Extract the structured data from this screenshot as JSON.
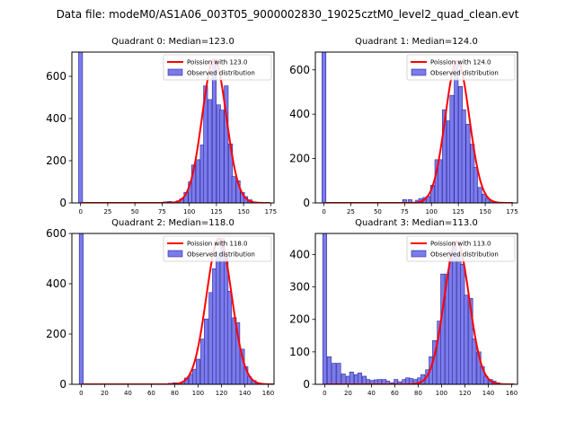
{
  "figure": {
    "suptitle": "Data file: modeM0/AS1A06_003T05_9000002830_19025cztM0_level2_quad_clean.evt"
  },
  "colors": {
    "bar_fill": "#7b7bec",
    "bar_edge": "#2a2a9a",
    "fit_line": "#ff0000",
    "axis": "#000000",
    "legend_edge": "#cccccc"
  },
  "chart_data": [
    {
      "type": "bar",
      "title": "Quadrant 0: Median=123.0",
      "median": 123.0,
      "legend": {
        "placement": "top-right",
        "fit_label": "Poission with 123.0",
        "hist_label": "Observed distribution"
      },
      "xlim": [
        -8,
        178
      ],
      "ylim": [
        0,
        715
      ],
      "xticks": [
        0,
        25,
        50,
        75,
        100,
        125,
        150,
        175
      ],
      "yticks": [
        0,
        200,
        400,
        600
      ],
      "bin_width": 3.7,
      "bins": [
        {
          "x": 0,
          "y": 715
        },
        {
          "x": 78,
          "y": 5
        },
        {
          "x": 82,
          "y": 7
        },
        {
          "x": 86,
          "y": 4
        },
        {
          "x": 90,
          "y": 10
        },
        {
          "x": 93,
          "y": 20
        },
        {
          "x": 97,
          "y": 50
        },
        {
          "x": 101,
          "y": 100
        },
        {
          "x": 104,
          "y": 180
        },
        {
          "x": 108,
          "y": 205
        },
        {
          "x": 112,
          "y": 275
        },
        {
          "x": 115,
          "y": 555
        },
        {
          "x": 119,
          "y": 490
        },
        {
          "x": 123,
          "y": 680
        },
        {
          "x": 127,
          "y": 465
        },
        {
          "x": 130,
          "y": 440
        },
        {
          "x": 134,
          "y": 555
        },
        {
          "x": 138,
          "y": 280
        },
        {
          "x": 141,
          "y": 125
        },
        {
          "x": 145,
          "y": 105
        },
        {
          "x": 149,
          "y": 50
        },
        {
          "x": 152,
          "y": 30
        },
        {
          "x": 156,
          "y": 15
        },
        {
          "x": 160,
          "y": 5
        }
      ]
    },
    {
      "type": "bar",
      "title": "Quadrant 1: Median=124.0",
      "median": 124.0,
      "legend": {
        "placement": "top-right",
        "fit_label": "Poission with 124.0",
        "hist_label": "Observed distribution"
      },
      "xlim": [
        -8,
        180
      ],
      "ylim": [
        0,
        680
      ],
      "xticks": [
        0,
        25,
        50,
        75,
        100,
        125,
        150,
        175
      ],
      "yticks": [
        0,
        200,
        400,
        600
      ],
      "bin_width": 3.7,
      "bins": [
        {
          "x": 0,
          "y": 680
        },
        {
          "x": 75,
          "y": 15
        },
        {
          "x": 80,
          "y": 15
        },
        {
          "x": 87,
          "y": 12
        },
        {
          "x": 90,
          "y": 20
        },
        {
          "x": 94,
          "y": 25
        },
        {
          "x": 97,
          "y": 30
        },
        {
          "x": 101,
          "y": 80
        },
        {
          "x": 105,
          "y": 195
        },
        {
          "x": 108,
          "y": 195
        },
        {
          "x": 112,
          "y": 420
        },
        {
          "x": 116,
          "y": 370
        },
        {
          "x": 119,
          "y": 485
        },
        {
          "x": 123,
          "y": 640
        },
        {
          "x": 127,
          "y": 525
        },
        {
          "x": 130,
          "y": 420
        },
        {
          "x": 134,
          "y": 355
        },
        {
          "x": 138,
          "y": 265
        },
        {
          "x": 141,
          "y": 160
        },
        {
          "x": 145,
          "y": 70
        },
        {
          "x": 149,
          "y": 40
        },
        {
          "x": 152,
          "y": 20
        },
        {
          "x": 156,
          "y": 8
        }
      ]
    },
    {
      "type": "bar",
      "title": "Quadrant 2: Median=118.0",
      "median": 118.0,
      "legend": {
        "placement": "top-right",
        "fit_label": "Poission with 118.0",
        "hist_label": "Observed distribution"
      },
      "xlim": [
        -8,
        165
      ],
      "ylim": [
        0,
        600
      ],
      "xticks": [
        0,
        20,
        40,
        60,
        80,
        100,
        120,
        140,
        160
      ],
      "yticks": [
        0,
        200,
        400,
        600
      ],
      "bin_width": 3.4,
      "bins": [
        {
          "x": 0,
          "y": 600
        },
        {
          "x": 76,
          "y": 4
        },
        {
          "x": 80,
          "y": 6
        },
        {
          "x": 84,
          "y": 5
        },
        {
          "x": 87,
          "y": 10
        },
        {
          "x": 90,
          "y": 25
        },
        {
          "x": 94,
          "y": 40
        },
        {
          "x": 97,
          "y": 60
        },
        {
          "x": 100,
          "y": 100
        },
        {
          "x": 104,
          "y": 180
        },
        {
          "x": 107,
          "y": 260
        },
        {
          "x": 111,
          "y": 365
        },
        {
          "x": 114,
          "y": 460
        },
        {
          "x": 117,
          "y": 525
        },
        {
          "x": 121,
          "y": 580
        },
        {
          "x": 124,
          "y": 510
        },
        {
          "x": 127,
          "y": 370
        },
        {
          "x": 131,
          "y": 265
        },
        {
          "x": 134,
          "y": 245
        },
        {
          "x": 138,
          "y": 140
        },
        {
          "x": 141,
          "y": 70
        },
        {
          "x": 144,
          "y": 30
        },
        {
          "x": 148,
          "y": 15
        },
        {
          "x": 151,
          "y": 6
        }
      ]
    },
    {
      "type": "bar",
      "title": "Quadrant 3: Median=113.0",
      "median": 113.0,
      "legend": {
        "placement": "top-right",
        "fit_label": "Poission with 113.0",
        "hist_label": "Observed distribution"
      },
      "xlim": [
        -8,
        165
      ],
      "ylim": [
        0,
        465
      ],
      "xticks": [
        0,
        20,
        40,
        60,
        80,
        100,
        120,
        140,
        160
      ],
      "yticks": [
        0,
        100,
        200,
        300,
        400
      ],
      "bin_width": 3.4,
      "bins": [
        {
          "x": 0,
          "y": 465
        },
        {
          "x": 4,
          "y": 85
        },
        {
          "x": 8,
          "y": 65
        },
        {
          "x": 12,
          "y": 65
        },
        {
          "x": 16,
          "y": 32
        },
        {
          "x": 20,
          "y": 25
        },
        {
          "x": 23,
          "y": 38
        },
        {
          "x": 27,
          "y": 30
        },
        {
          "x": 30,
          "y": 35
        },
        {
          "x": 34,
          "y": 25
        },
        {
          "x": 37,
          "y": 15
        },
        {
          "x": 41,
          "y": 12
        },
        {
          "x": 44,
          "y": 14
        },
        {
          "x": 47,
          "y": 15
        },
        {
          "x": 51,
          "y": 15
        },
        {
          "x": 54,
          "y": 10
        },
        {
          "x": 58,
          "y": 5
        },
        {
          "x": 61,
          "y": 15
        },
        {
          "x": 64,
          "y": 8
        },
        {
          "x": 68,
          "y": 15
        },
        {
          "x": 71,
          "y": 20
        },
        {
          "x": 74,
          "y": 18
        },
        {
          "x": 78,
          "y": 15
        },
        {
          "x": 81,
          "y": 20
        },
        {
          "x": 84,
          "y": 30
        },
        {
          "x": 88,
          "y": 45
        },
        {
          "x": 91,
          "y": 85
        },
        {
          "x": 94,
          "y": 135
        },
        {
          "x": 98,
          "y": 195
        },
        {
          "x": 101,
          "y": 340
        },
        {
          "x": 105,
          "y": 340
        },
        {
          "x": 108,
          "y": 410
        },
        {
          "x": 111,
          "y": 440
        },
        {
          "x": 115,
          "y": 400
        },
        {
          "x": 118,
          "y": 370
        },
        {
          "x": 121,
          "y": 275
        },
        {
          "x": 125,
          "y": 265
        },
        {
          "x": 128,
          "y": 140
        },
        {
          "x": 132,
          "y": 100
        },
        {
          "x": 135,
          "y": 55
        },
        {
          "x": 138,
          "y": 25
        },
        {
          "x": 142,
          "y": 15
        },
        {
          "x": 145,
          "y": 10
        },
        {
          "x": 148,
          "y": 5
        }
      ]
    }
  ]
}
